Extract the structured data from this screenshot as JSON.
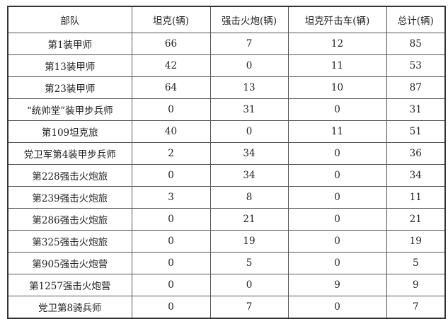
{
  "table": {
    "headers": [
      "部队",
      "坦克(辆)",
      "强击火炮(辆)",
      "坦克歼击车(辆)",
      "总计(辆)"
    ],
    "rows": [
      [
        "第1装甲师",
        "66",
        "7",
        "12",
        "85"
      ],
      [
        "第13装甲师",
        "42",
        "0",
        "11",
        "53"
      ],
      [
        "第23装甲师",
        "64",
        "13",
        "10",
        "87"
      ],
      [
        "“统帅堂”装甲步兵师",
        "0",
        "31",
        "0",
        "31"
      ],
      [
        "第109坦克旅",
        "40",
        "0",
        "11",
        "51"
      ],
      [
        "党卫军第4装甲步兵师",
        "2",
        "34",
        "0",
        "36"
      ],
      [
        "第228强击火炮旅",
        "0",
        "34",
        "0",
        "34"
      ],
      [
        "第239强击火炮旅",
        "3",
        "8",
        "0",
        "11"
      ],
      [
        "第286强击火炮旅",
        "0",
        "21",
        "0",
        "21"
      ],
      [
        "第325强击火炮旅",
        "0",
        "19",
        "0",
        "19"
      ],
      [
        "第905强击火炮营",
        "0",
        "5",
        "0",
        "5"
      ],
      [
        "第1257强击火炮营",
        "0",
        "0",
        "9",
        "9"
      ],
      [
        "党卫第8骑兵师",
        "0",
        "7",
        "0",
        "7"
      ]
    ]
  }
}
